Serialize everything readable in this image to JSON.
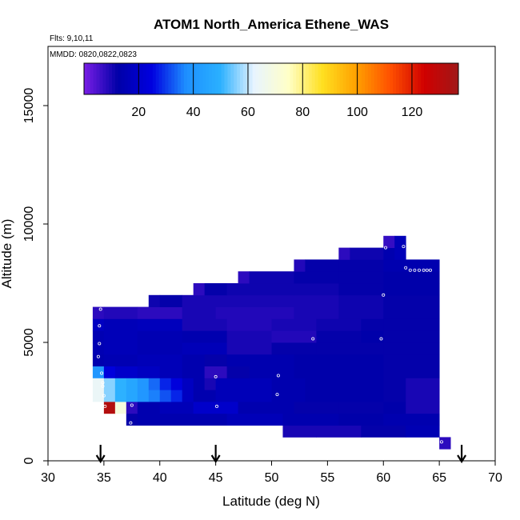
{
  "header": {
    "title": "ATOM1 North_America Ethene_WAS",
    "flights_note": "Flts: 9,10,11",
    "dates_note": "MMDD: 0820,0822,0823"
  },
  "chart_data": {
    "type": "heatmap",
    "title": "ATOM1 North_America Ethene_WAS",
    "xlabel": "Latitude (deg N)",
    "ylabel": "Altitude (m)",
    "xlim": [
      30,
      70
    ],
    "ylim": [
      0,
      17500
    ],
    "xticks": [
      30,
      35,
      40,
      45,
      50,
      55,
      60,
      65,
      70
    ],
    "yticks": [
      0,
      5000,
      10000,
      15000
    ],
    "colorbar": {
      "min": 0,
      "max": 137,
      "ticks": [
        20,
        40,
        60,
        80,
        100,
        120
      ],
      "colors": [
        "#7a1ee6",
        "#0000a8",
        "#0000e0",
        "#1e90ff",
        "#2ab0ff",
        "#e8f4ff",
        "#ffffc8",
        "#ffe020",
        "#ffa000",
        "#ff5000",
        "#d00000",
        "#a01818"
      ],
      "position": "top"
    },
    "cell_size": {
      "lat": 1.0,
      "alt": 500
    },
    "rows": [
      {
        "alt": 500,
        "cells": [
          [
            65,
            66,
            8
          ]
        ]
      },
      {
        "alt": 1000,
        "cells": [
          [
            51,
            54,
            10
          ],
          [
            54,
            58,
            10
          ],
          [
            58,
            62,
            12
          ],
          [
            62,
            65,
            15
          ]
        ]
      },
      {
        "alt": 1500,
        "cells": [
          [
            37,
            38,
            12
          ],
          [
            38,
            46,
            14
          ],
          [
            46,
            51,
            16
          ],
          [
            51,
            56,
            14
          ],
          [
            56,
            60,
            13
          ],
          [
            60,
            65,
            14
          ]
        ]
      },
      {
        "alt": 2000,
        "cells": [
          [
            35,
            36,
            132
          ],
          [
            36,
            37,
            70
          ],
          [
            37,
            38,
            8
          ],
          [
            38,
            40,
            14
          ],
          [
            40,
            43,
            16
          ],
          [
            43,
            47,
            20
          ],
          [
            47,
            52,
            14
          ],
          [
            52,
            56,
            12
          ],
          [
            56,
            60,
            12
          ],
          [
            60,
            62,
            13
          ],
          [
            62,
            65,
            10
          ]
        ]
      },
      {
        "alt": 2500,
        "cells": [
          [
            34,
            35,
            64
          ],
          [
            35,
            36,
            56
          ],
          [
            36,
            37,
            50
          ],
          [
            37,
            38,
            46
          ],
          [
            38,
            39,
            40
          ],
          [
            39,
            40,
            36
          ],
          [
            40,
            41,
            32
          ],
          [
            41,
            42,
            28
          ],
          [
            42,
            43,
            18
          ],
          [
            43,
            45,
            14
          ],
          [
            45,
            50,
            16
          ],
          [
            50,
            53,
            14
          ],
          [
            53,
            57,
            13
          ],
          [
            57,
            60,
            13
          ],
          [
            60,
            62,
            12
          ],
          [
            62,
            65,
            10
          ]
        ]
      },
      {
        "alt": 3000,
        "cells": [
          [
            34,
            35,
            64
          ],
          [
            35,
            36,
            56
          ],
          [
            36,
            37,
            50
          ],
          [
            37,
            38,
            46
          ],
          [
            38,
            39,
            40
          ],
          [
            39,
            40,
            34
          ],
          [
            40,
            41,
            28
          ],
          [
            41,
            42,
            24
          ],
          [
            42,
            43,
            18
          ],
          [
            43,
            44,
            14
          ],
          [
            44,
            45,
            10
          ],
          [
            45,
            50,
            16
          ],
          [
            50,
            53,
            14
          ],
          [
            53,
            57,
            13
          ],
          [
            57,
            60,
            13
          ],
          [
            60,
            62,
            12
          ],
          [
            62,
            65,
            10
          ]
        ]
      },
      {
        "alt": 3500,
        "cells": [
          [
            34,
            35,
            40
          ],
          [
            35,
            36,
            24
          ],
          [
            36,
            38,
            20
          ],
          [
            38,
            40,
            18
          ],
          [
            40,
            42,
            16
          ],
          [
            42,
            44,
            14
          ],
          [
            44,
            46,
            8
          ],
          [
            46,
            48,
            12
          ],
          [
            48,
            52,
            14
          ],
          [
            52,
            56,
            13
          ],
          [
            56,
            60,
            13
          ],
          [
            60,
            65,
            12
          ]
        ]
      },
      {
        "alt": 4000,
        "cells": [
          [
            34,
            35,
            14
          ],
          [
            35,
            38,
            15
          ],
          [
            38,
            42,
            16
          ],
          [
            42,
            44,
            14
          ],
          [
            44,
            46,
            12
          ],
          [
            46,
            52,
            14
          ],
          [
            52,
            56,
            13
          ],
          [
            56,
            60,
            13
          ],
          [
            60,
            65,
            12
          ]
        ]
      },
      {
        "alt": 4500,
        "cells": [
          [
            34,
            35,
            15
          ],
          [
            35,
            38,
            16
          ],
          [
            38,
            42,
            15
          ],
          [
            42,
            46,
            16
          ],
          [
            46,
            50,
            10
          ],
          [
            50,
            54,
            12
          ],
          [
            54,
            60,
            12
          ],
          [
            60,
            65,
            12
          ]
        ]
      },
      {
        "alt": 5000,
        "cells": [
          [
            34,
            35,
            15
          ],
          [
            35,
            38,
            16
          ],
          [
            38,
            42,
            15
          ],
          [
            42,
            46,
            14
          ],
          [
            46,
            50,
            10
          ],
          [
            50,
            54,
            9
          ],
          [
            54,
            58,
            12
          ],
          [
            58,
            60,
            13
          ],
          [
            60,
            65,
            12
          ]
        ]
      },
      {
        "alt": 5500,
        "cells": [
          [
            34,
            35,
            18
          ],
          [
            35,
            38,
            16
          ],
          [
            38,
            42,
            17
          ],
          [
            42,
            46,
            10
          ],
          [
            46,
            50,
            9
          ],
          [
            50,
            54,
            10
          ],
          [
            54,
            58,
            11
          ],
          [
            58,
            60,
            12
          ],
          [
            60,
            65,
            12
          ]
        ]
      },
      {
        "alt": 6000,
        "cells": [
          [
            34,
            35,
            8
          ],
          [
            35,
            38,
            9
          ],
          [
            38,
            42,
            8
          ],
          [
            42,
            45,
            10
          ],
          [
            45,
            52,
            9
          ],
          [
            52,
            56,
            10
          ],
          [
            56,
            60,
            11
          ],
          [
            60,
            65,
            12
          ]
        ]
      },
      {
        "alt": 6500,
        "cells": [
          [
            39,
            40,
            11
          ],
          [
            40,
            42,
            12
          ],
          [
            42,
            46,
            10
          ],
          [
            46,
            52,
            10
          ],
          [
            52,
            56,
            10
          ],
          [
            56,
            60,
            11
          ],
          [
            60,
            65,
            12
          ]
        ]
      },
      {
        "alt": 7000,
        "cells": [
          [
            43,
            44,
            8
          ],
          [
            44,
            46,
            12
          ],
          [
            46,
            52,
            11
          ],
          [
            52,
            56,
            11
          ],
          [
            56,
            60,
            12
          ],
          [
            60,
            65,
            13
          ]
        ]
      },
      {
        "alt": 7500,
        "cells": [
          [
            47,
            48,
            8
          ],
          [
            48,
            52,
            11
          ],
          [
            52,
            56,
            12
          ],
          [
            56,
            60,
            12
          ],
          [
            60,
            65,
            13
          ]
        ]
      },
      {
        "alt": 8000,
        "cells": [
          [
            52,
            53,
            9
          ],
          [
            53,
            56,
            12
          ],
          [
            56,
            60,
            12
          ],
          [
            60,
            65,
            14
          ]
        ]
      },
      {
        "alt": 8500,
        "cells": [
          [
            56,
            57,
            8
          ],
          [
            57,
            60,
            11
          ],
          [
            60,
            61,
            14
          ],
          [
            61,
            62,
            16
          ]
        ]
      },
      {
        "alt": 9000,
        "cells": [
          [
            60,
            61,
            7
          ],
          [
            61,
            62,
            16
          ]
        ]
      }
    ],
    "points": [
      [
        34.7,
        6400
      ],
      [
        34.6,
        5700
      ],
      [
        34.6,
        4950
      ],
      [
        34.5,
        4400
      ],
      [
        34.8,
        3700
      ],
      [
        34.9,
        3300
      ],
      [
        34.9,
        3150
      ],
      [
        35.0,
        2750
      ],
      [
        35.1,
        2300
      ],
      [
        37.5,
        2350
      ],
      [
        37.4,
        1600
      ],
      [
        45.0,
        3550
      ],
      [
        45.1,
        2300
      ],
      [
        50.6,
        3600
      ],
      [
        50.5,
        2800
      ],
      [
        53.7,
        5150
      ],
      [
        59.8,
        5150
      ],
      [
        60.0,
        7000
      ],
      [
        60.2,
        9000
      ],
      [
        61.8,
        9050
      ],
      [
        62.0,
        8150
      ],
      [
        62.4,
        8050
      ],
      [
        62.8,
        8050
      ],
      [
        63.2,
        8050
      ],
      [
        63.6,
        8050
      ],
      [
        63.9,
        8050
      ],
      [
        64.2,
        8050
      ],
      [
        65.2,
        800
      ]
    ],
    "arrows": [
      34.7,
      45.0,
      67.0
    ],
    "grid": false
  }
}
